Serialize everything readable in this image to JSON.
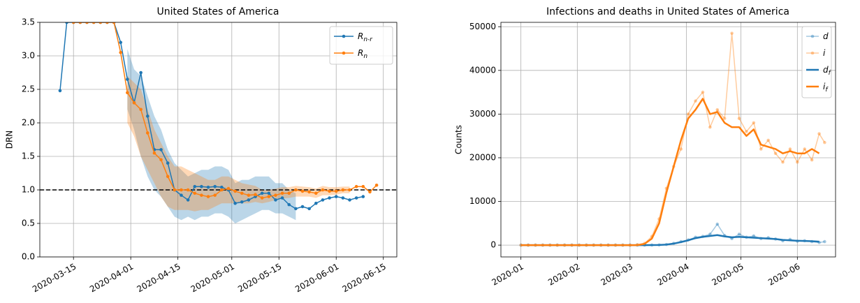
{
  "chart_data": [
    {
      "type": "line",
      "title": "United States of America",
      "ylabel": "DRN",
      "x": [
        "2020-03-11",
        "2020-03-13",
        "2020-03-15",
        "2020-03-17",
        "2020-03-19",
        "2020-03-21",
        "2020-03-23",
        "2020-03-25",
        "2020-03-27",
        "2020-03-29",
        "2020-03-31",
        "2020-04-02",
        "2020-04-04",
        "2020-04-06",
        "2020-04-08",
        "2020-04-10",
        "2020-04-12",
        "2020-04-14",
        "2020-04-16",
        "2020-04-18",
        "2020-04-20",
        "2020-04-22",
        "2020-04-24",
        "2020-04-26",
        "2020-04-28",
        "2020-04-30",
        "2020-05-02",
        "2020-05-04",
        "2020-05-06",
        "2020-05-08",
        "2020-05-10",
        "2020-05-12",
        "2020-05-14",
        "2020-05-16",
        "2020-05-18",
        "2020-05-20",
        "2020-05-22",
        "2020-05-24",
        "2020-05-26",
        "2020-05-28",
        "2020-05-30",
        "2020-06-01",
        "2020-06-03",
        "2020-06-05",
        "2020-06-07",
        "2020-06-09",
        "2020-06-11",
        "2020-06-13"
      ],
      "series": [
        {
          "name": "R_{n-r}",
          "color": "#1f77b4",
          "marker": true,
          "alpha": 1,
          "linewidth": 1.5,
          "values": [
            2.48,
            3.5,
            3.5,
            3.5,
            3.5,
            3.5,
            3.5,
            3.5,
            3.5,
            3.2,
            2.65,
            2.3,
            2.75,
            2.1,
            1.6,
            1.6,
            1.4,
            1.0,
            0.92,
            0.85,
            1.05,
            1.05,
            1.04,
            1.05,
            1.04,
            1.0,
            0.8,
            0.82,
            0.85,
            0.9,
            0.95,
            0.95,
            0.85,
            0.88,
            0.78,
            0.72,
            0.75,
            0.72,
            0.8,
            0.85,
            0.88,
            0.9,
            0.88,
            0.85,
            0.88,
            0.9,
            null,
            null
          ],
          "lower": [
            null,
            null,
            null,
            null,
            null,
            null,
            null,
            null,
            null,
            null,
            2.2,
            1.9,
            1.5,
            1.2,
            1.0,
            0.9,
            0.75,
            0.6,
            0.55,
            0.6,
            0.55,
            0.6,
            0.6,
            0.65,
            0.65,
            0.6,
            0.5,
            0.55,
            0.6,
            0.65,
            0.7,
            0.7,
            0.65,
            0.65,
            0.6,
            0.55,
            null,
            null,
            null,
            null,
            null,
            null,
            null,
            null,
            null,
            null,
            null,
            null
          ],
          "upper": [
            null,
            null,
            null,
            null,
            null,
            null,
            null,
            null,
            null,
            null,
            3.1,
            2.8,
            2.7,
            2.4,
            2.1,
            1.9,
            1.6,
            1.4,
            1.3,
            1.2,
            1.25,
            1.3,
            1.3,
            1.35,
            1.35,
            1.3,
            1.1,
            1.15,
            1.15,
            1.2,
            1.2,
            1.2,
            1.1,
            1.1,
            1.0,
            0.95,
            null,
            null,
            null,
            null,
            null,
            null,
            null,
            null,
            null,
            null,
            null,
            null
          ]
        },
        {
          "name": "R_n",
          "color": "#ff7f0e",
          "marker": true,
          "alpha": 1,
          "linewidth": 1.5,
          "values": [
            null,
            null,
            3.5,
            3.5,
            3.5,
            3.5,
            3.5,
            3.5,
            3.5,
            3.05,
            2.45,
            2.3,
            2.2,
            1.85,
            1.55,
            1.45,
            1.2,
            1.0,
            1.0,
            1.0,
            0.95,
            0.92,
            0.9,
            0.92,
            1.0,
            1.02,
            0.98,
            0.95,
            0.92,
            0.93,
            0.88,
            0.9,
            0.92,
            0.95,
            0.95,
            1.0,
            0.98,
            0.97,
            0.95,
            1.0,
            0.98,
            0.98,
            1.0,
            1.0,
            1.05,
            1.05,
            0.97,
            1.07
          ],
          "lower": [
            null,
            null,
            null,
            null,
            null,
            null,
            null,
            null,
            null,
            null,
            2.0,
            1.8,
            1.5,
            1.3,
            1.1,
            0.9,
            0.75,
            0.7,
            0.7,
            0.7,
            0.68,
            0.7,
            0.7,
            0.75,
            0.8,
            0.8,
            0.8,
            0.8,
            0.8,
            0.82,
            0.8,
            0.82,
            0.85,
            0.87,
            0.88,
            0.9,
            0.9,
            0.9,
            0.88,
            0.92,
            0.92,
            0.93,
            0.95,
            0.95,
            null,
            null,
            null,
            null
          ],
          "upper": [
            null,
            null,
            null,
            null,
            null,
            null,
            null,
            null,
            null,
            null,
            2.7,
            2.6,
            2.5,
            2.2,
            1.9,
            1.7,
            1.5,
            1.35,
            1.35,
            1.3,
            1.25,
            1.2,
            1.15,
            1.15,
            1.2,
            1.2,
            1.15,
            1.1,
            1.08,
            1.06,
            1.0,
            1.0,
            1.02,
            1.04,
            1.04,
            1.06,
            1.05,
            1.04,
            1.02,
            1.06,
            1.04,
            1.04,
            1.05,
            1.05,
            null,
            null,
            null,
            null
          ]
        }
      ],
      "hline": 1.0,
      "xlim": [
        "2020-03-05",
        "2020-06-19"
      ],
      "xticks": [
        "2020-03-15",
        "2020-04-01",
        "2020-04-15",
        "2020-05-01",
        "2020-05-15",
        "2020-06-01",
        "2020-06-15"
      ],
      "ylim": [
        0,
        3.5
      ],
      "yticks": [
        {
          "value": 0,
          "label": "0.0"
        },
        0.5,
        {
          "value": 1,
          "label": "1.0"
        },
        1.5,
        {
          "value": 2,
          "label": "2.0"
        },
        2.5,
        {
          "value": 3,
          "label": "3.0"
        },
        3.5
      ],
      "grid": true,
      "legend": "upper right"
    },
    {
      "type": "line",
      "title": "Infections and deaths in United States of America",
      "ylabel": "Counts",
      "x": [
        "2020-01-01",
        "2020-01-05",
        "2020-01-09",
        "2020-01-13",
        "2020-01-17",
        "2020-01-21",
        "2020-01-25",
        "2020-01-29",
        "2020-02-02",
        "2020-02-06",
        "2020-02-10",
        "2020-02-14",
        "2020-02-18",
        "2020-02-22",
        "2020-02-26",
        "2020-03-01",
        "2020-03-05",
        "2020-03-09",
        "2020-03-13",
        "2020-03-17",
        "2020-03-21",
        "2020-03-25",
        "2020-03-29",
        "2020-04-02",
        "2020-04-06",
        "2020-04-10",
        "2020-04-14",
        "2020-04-18",
        "2020-04-22",
        "2020-04-26",
        "2020-04-30",
        "2020-05-04",
        "2020-05-08",
        "2020-05-12",
        "2020-05-16",
        "2020-05-20",
        "2020-05-24",
        "2020-05-28",
        "2020-06-01",
        "2020-06-05",
        "2020-06-09",
        "2020-06-13",
        "2020-06-16"
      ],
      "series": [
        {
          "name": "d",
          "color": "#1f77b4",
          "marker": true,
          "alpha": 0.4,
          "linewidth": 1.5,
          "values": [
            0,
            0,
            0,
            0,
            0,
            0,
            0,
            0,
            0,
            0,
            0,
            0,
            0,
            0,
            0,
            0,
            0,
            0,
            20,
            50,
            150,
            400,
            800,
            1200,
            1800,
            2000,
            2500,
            4800,
            2200,
            1500,
            2500,
            1800,
            2100,
            1500,
            1700,
            1400,
            1000,
            1300,
            900,
            1000,
            800,
            600,
            800
          ]
        },
        {
          "name": "i",
          "color": "#ff7f0e",
          "marker": true,
          "alpha": 0.4,
          "linewidth": 1.5,
          "values": [
            0,
            0,
            0,
            0,
            0,
            0,
            0,
            0,
            0,
            0,
            0,
            0,
            0,
            0,
            0,
            0,
            100,
            400,
            2000,
            6000,
            13000,
            18000,
            22000,
            30000,
            33000,
            35000,
            27000,
            31000,
            29000,
            48500,
            29000,
            26000,
            28000,
            22000,
            24000,
            21000,
            19000,
            22000,
            19000,
            22000,
            19500,
            25500,
            23500
          ]
        },
        {
          "name": "d_f",
          "color": "#1f77b4",
          "marker": false,
          "alpha": 1,
          "linewidth": 2.5,
          "values": [
            0,
            0,
            0,
            0,
            0,
            0,
            0,
            0,
            0,
            0,
            0,
            0,
            0,
            0,
            0,
            0,
            0,
            0,
            10,
            40,
            120,
            350,
            700,
            1100,
            1600,
            1900,
            2100,
            2300,
            2000,
            1800,
            1900,
            1800,
            1700,
            1600,
            1500,
            1400,
            1200,
            1100,
            1000,
            950,
            900,
            800,
            null
          ]
        },
        {
          "name": "i_f",
          "color": "#ff7f0e",
          "marker": false,
          "alpha": 1,
          "linewidth": 2.5,
          "values": [
            0,
            0,
            0,
            0,
            0,
            0,
            0,
            0,
            0,
            0,
            0,
            0,
            0,
            0,
            0,
            0,
            0,
            300,
            1500,
            5000,
            12000,
            18000,
            24000,
            29000,
            31000,
            33500,
            30000,
            30500,
            28000,
            27000,
            27000,
            25000,
            26500,
            23000,
            22500,
            22000,
            21000,
            21500,
            21000,
            21000,
            22000,
            21000,
            null
          ]
        }
      ],
      "xlim": [
        "2019-12-21",
        "2020-06-22"
      ],
      "xticks": [
        {
          "value": "2020-01-01",
          "label": "2020-01"
        },
        {
          "value": "2020-02-01",
          "label": "2020-02"
        },
        {
          "value": "2020-03-01",
          "label": "2020-03"
        },
        {
          "value": "2020-04-01",
          "label": "2020-04"
        },
        {
          "value": "2020-05-01",
          "label": "2020-05"
        },
        {
          "value": "2020-06-01",
          "label": "2020-06"
        }
      ],
      "ylim": [
        -2700,
        51000
      ],
      "yticks": [
        0,
        10000,
        20000,
        30000,
        40000,
        50000
      ],
      "grid": true,
      "legend": "upper right"
    }
  ]
}
